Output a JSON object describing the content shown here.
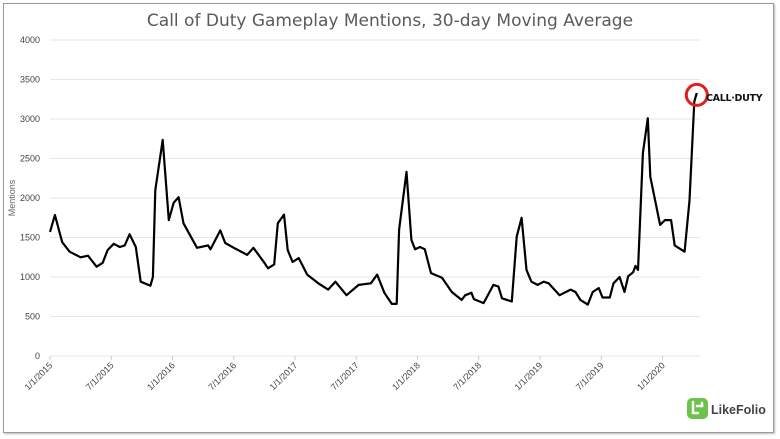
{
  "chart_data": {
    "type": "line",
    "title": "Call of Duty Gameplay Mentions, 30-day Moving Average",
    "xlabel": "",
    "ylabel": "Mentions",
    "ylim": [
      0,
      4000
    ],
    "yticks": [
      0,
      500,
      1000,
      1500,
      2000,
      2500,
      3000,
      3500,
      4000
    ],
    "xticks": [
      "1/1/2015",
      "7/1/2015",
      "1/1/2016",
      "7/1/2016",
      "1/1/2017",
      "7/1/2017",
      "1/1/2018",
      "7/1/2018",
      "1/1/2019",
      "7/1/2019",
      "1/1/2020"
    ],
    "xtick_years": [
      2015.0,
      2015.5,
      2016.0,
      2016.5,
      2017.0,
      2017.5,
      2018.0,
      2018.5,
      2019.0,
      2019.5,
      2020.0
    ],
    "xlim": [
      2015.0,
      2020.65
    ],
    "grid": true,
    "series": [
      {
        "name": "Call of Duty Gameplay Mentions",
        "color": "#000000",
        "x": [
          2015.0,
          2015.04,
          2015.1,
          2015.16,
          2015.25,
          2015.31,
          2015.38,
          2015.43,
          2015.47,
          2015.52,
          2015.57,
          2015.61,
          2015.65,
          2015.7,
          2015.74,
          2015.82,
          2015.84,
          2015.86,
          2015.92,
          2015.97,
          2016.01,
          2016.05,
          2016.09,
          2016.2,
          2016.29,
          2016.31,
          2016.39,
          2016.43,
          2016.5,
          2016.61,
          2016.66,
          2016.75,
          2016.78,
          2016.83,
          2016.86,
          2016.91,
          2016.94,
          2016.98,
          2017.03,
          2017.1,
          2017.19,
          2017.27,
          2017.33,
          2017.42,
          2017.52,
          2017.62,
          2017.67,
          2017.73,
          2017.79,
          2017.83,
          2017.85,
          2017.91,
          2017.95,
          2017.98,
          2018.02,
          2018.06,
          2018.11,
          2018.2,
          2018.28,
          2018.36,
          2018.39,
          2018.44,
          2018.46,
          2018.54,
          2018.62,
          2018.66,
          2018.69,
          2018.75,
          2018.77,
          2018.81,
          2018.85,
          2018.89,
          2018.93,
          2018.98,
          2019.03,
          2019.07,
          2019.16,
          2019.25,
          2019.29,
          2019.33,
          2019.39,
          2019.43,
          2019.48,
          2019.51,
          2019.57,
          2019.6,
          2019.65,
          2019.69,
          2019.72,
          2019.76,
          2019.78,
          2019.8,
          2019.84,
          2019.88,
          2019.9,
          2019.98,
          2020.02,
          2020.07,
          2020.1,
          2020.18,
          2020.22,
          2020.26,
          2020.28
        ],
        "values": [
          1570,
          1785,
          1440,
          1320,
          1250,
          1270,
          1130,
          1180,
          1340,
          1420,
          1380,
          1400,
          1540,
          1380,
          940,
          890,
          1000,
          2100,
          2735,
          1720,
          1940,
          2010,
          1680,
          1370,
          1400,
          1350,
          1590,
          1430,
          1370,
          1280,
          1370,
          1180,
          1110,
          1160,
          1680,
          1790,
          1340,
          1190,
          1240,
          1030,
          920,
          840,
          940,
          770,
          900,
          920,
          1030,
          800,
          660,
          660,
          1600,
          2330,
          1470,
          1350,
          1380,
          1350,
          1050,
          990,
          810,
          710,
          770,
          800,
          720,
          670,
          900,
          880,
          730,
          700,
          690,
          1510,
          1750,
          1090,
          940,
          900,
          940,
          920,
          770,
          840,
          810,
          710,
          650,
          810,
          860,
          740,
          740,
          920,
          1000,
          810,
          1010,
          1060,
          1140,
          1090,
          2570,
          3010,
          2270,
          1660,
          1720,
          1720,
          1400,
          1320,
          1970,
          3220,
          3330
        ]
      }
    ],
    "annotations": {
      "highlight_color": "#e41e1e",
      "brand_logo_text": "CALL·DUTY",
      "watermark": "LikeFolio",
      "watermark_color": "#6cc24a"
    }
  }
}
